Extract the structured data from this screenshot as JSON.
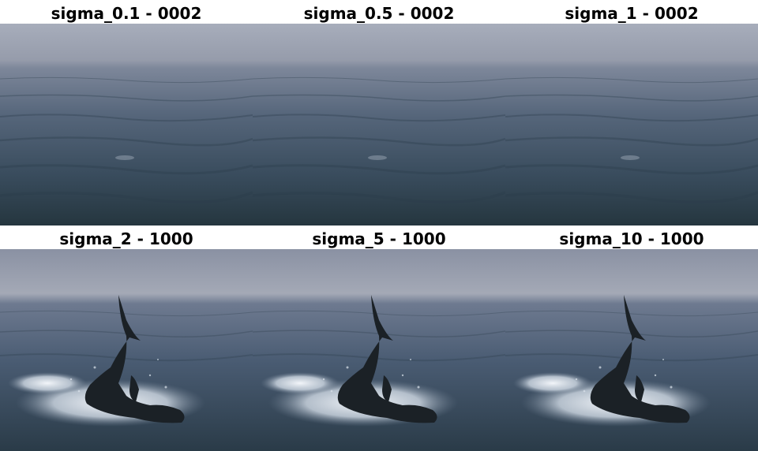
{
  "panels": [
    {
      "title": "sigma_0.1 - 0002",
      "scene": "open-ocean"
    },
    {
      "title": "sigma_0.5 - 0002",
      "scene": "open-ocean"
    },
    {
      "title": "sigma_1 - 0002",
      "scene": "open-ocean"
    },
    {
      "title": "sigma_2 - 1000",
      "scene": "breaching-shark"
    },
    {
      "title": "sigma_5 - 1000",
      "scene": "breaching-shark"
    },
    {
      "title": "sigma_10 - 1000",
      "scene": "breaching-shark"
    }
  ],
  "colors": {
    "sky": "#a6abb8",
    "horizon": "#8c93a3",
    "sea_far": "#6f7a8e",
    "sea_mid": "#415469",
    "sea_near": "#253845",
    "foam": "#e9eef4",
    "shark": "#1b2126"
  }
}
